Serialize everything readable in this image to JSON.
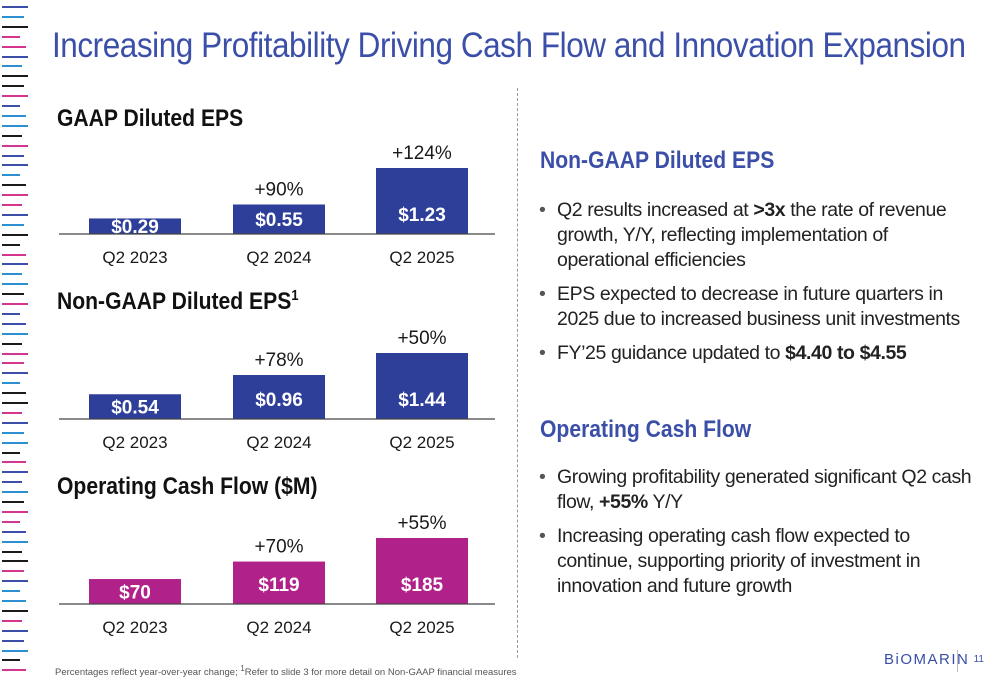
{
  "page": {
    "title": "Increasing Profitability Driving Cash Flow and Innovation Expansion",
    "footnote_pre": "Percentages reflect year-over-year change; ",
    "footnote_sup": "1",
    "footnote_post": "Refer to slide 3 for more detail on Non-GAAP financial measures",
    "logo": "BiOMARIN",
    "page_number": "11"
  },
  "colors": {
    "title": "#3b4fa8",
    "eps_bar": "#2e3f9a",
    "ocf_bar": "#b0228a",
    "edge_lines": [
      "#3b4fa8",
      "#d3368f",
      "#1a1a1a",
      "#2b8fd0"
    ]
  },
  "chart_data": [
    {
      "type": "bar",
      "title": "GAAP Diluted EPS",
      "title_sup": "",
      "categories": [
        "Q2 2023",
        "Q2 2024",
        "Q2 2025"
      ],
      "values": [
        0.29,
        0.55,
        1.23
      ],
      "labels": [
        "$0.29",
        "$0.55",
        "$1.23"
      ],
      "changes": [
        "",
        "+90%",
        "+124%"
      ],
      "color": "#2e3f9a",
      "ylim": [
        0,
        1.23
      ]
    },
    {
      "type": "bar",
      "title": "Non-GAAP Diluted EPS",
      "title_sup": "1",
      "categories": [
        "Q2 2023",
        "Q2 2024",
        "Q2 2025"
      ],
      "values": [
        0.54,
        0.96,
        1.44
      ],
      "labels": [
        "$0.54",
        "$0.96",
        "$1.44"
      ],
      "changes": [
        "",
        "+78%",
        "+50%"
      ],
      "color": "#2e3f9a",
      "ylim": [
        0,
        1.44
      ]
    },
    {
      "type": "bar",
      "title": "Operating Cash Flow ($M)",
      "title_sup": "",
      "categories": [
        "Q2 2023",
        "Q2 2024",
        "Q2 2025"
      ],
      "values": [
        70,
        119,
        185
      ],
      "labels": [
        "$70",
        "$119",
        "$185"
      ],
      "changes": [
        "",
        "+70%",
        "+55%"
      ],
      "color": "#b0228a",
      "ylim": [
        0,
        185
      ]
    }
  ],
  "sections": [
    {
      "heading": "Non-GAAP Diluted EPS",
      "bullets": [
        [
          {
            "t": "Q2 results increased at "
          },
          {
            "t": ">3x",
            "b": true
          },
          {
            "t": " the rate of revenue growth, Y/Y, reflecting implementation of operational efficiencies"
          }
        ],
        [
          {
            "t": "EPS expected to decrease in future quarters in 2025 due to increased business unit investments"
          }
        ],
        [
          {
            "t": "FY’25 guidance updated to "
          },
          {
            "t": "$4.40 to $4.55",
            "b": true
          }
        ]
      ]
    },
    {
      "heading": "Operating Cash Flow",
      "bullets": [
        [
          {
            "t": "Growing profitability generated significant Q2 cash flow, "
          },
          {
            "t": "+55%",
            "b": true
          },
          {
            "t": " Y/Y"
          }
        ],
        [
          {
            "t": "Increasing operating cash flow expected to continue, supporting priority of investment in innovation and future growth"
          }
        ]
      ]
    }
  ]
}
